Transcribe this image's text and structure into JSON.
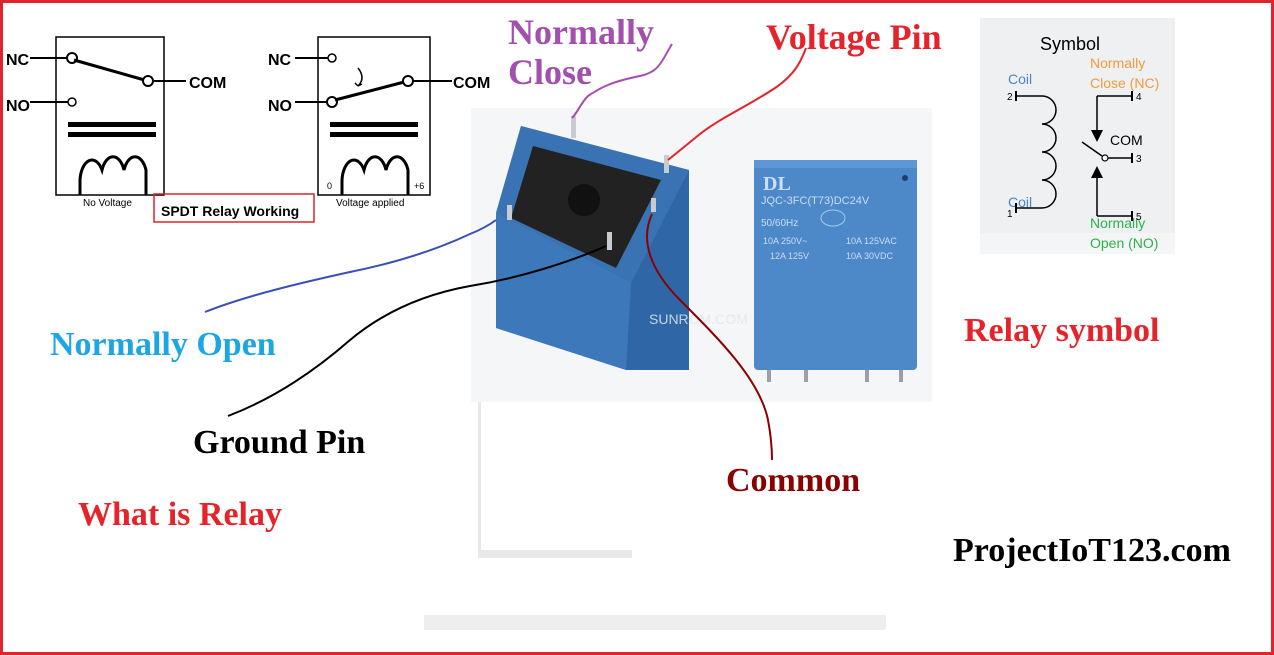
{
  "title": "What is Relay",
  "website": "ProjectIoT123.com",
  "spdt": {
    "caption": "SPDT Relay Working",
    "left_diagram": {
      "nc": "NC",
      "no": "NO",
      "com": "COM",
      "caption": "No Voltage"
    },
    "right_diagram": {
      "nc": "NC",
      "no": "NO",
      "com": "COM",
      "caption": "Voltage applied",
      "v0": "0",
      "v6": "+6"
    }
  },
  "callouts": {
    "normally_close": [
      "Normally",
      "Close"
    ],
    "voltage_pin": "Voltage Pin",
    "normally_open": "Normally Open",
    "ground_pin": "Ground Pin",
    "common": "Common",
    "relay_symbol": "Relay symbol"
  },
  "symbol_box": {
    "heading": "Symbol",
    "coil_top": "Coil",
    "coil_bottom": "Coil",
    "nc_line1": "Normally",
    "nc_line2": "Close (NC)",
    "com": "COM",
    "no_line1": "Normally",
    "no_line2": "Open (NO)",
    "pin1": "1",
    "pin2": "2",
    "pin3": "3",
    "pin4": "4",
    "pin5": "5"
  },
  "relay_photo": {
    "brand": "DL",
    "model": "JQC-3FC(T73)DC24V",
    "freq": "50/60Hz",
    "rating_1a": "10A 250V~",
    "rating_1b": "10A 125VAC",
    "rating_2a": "12A 125V",
    "rating_2b": "10A 30VDC",
    "watermark": "SUNROM.COM"
  },
  "colors": {
    "border": "#e0242b",
    "normally_close": "#a24fae",
    "voltage_pin": "#e5232a",
    "normally_open": "#1ca6e4",
    "common": "#8b0000",
    "relay_blue": "#4a83c3",
    "nc_orange": "#f39a3c",
    "no_green": "#2bb24c",
    "coil_blue": "#4a86c8"
  }
}
